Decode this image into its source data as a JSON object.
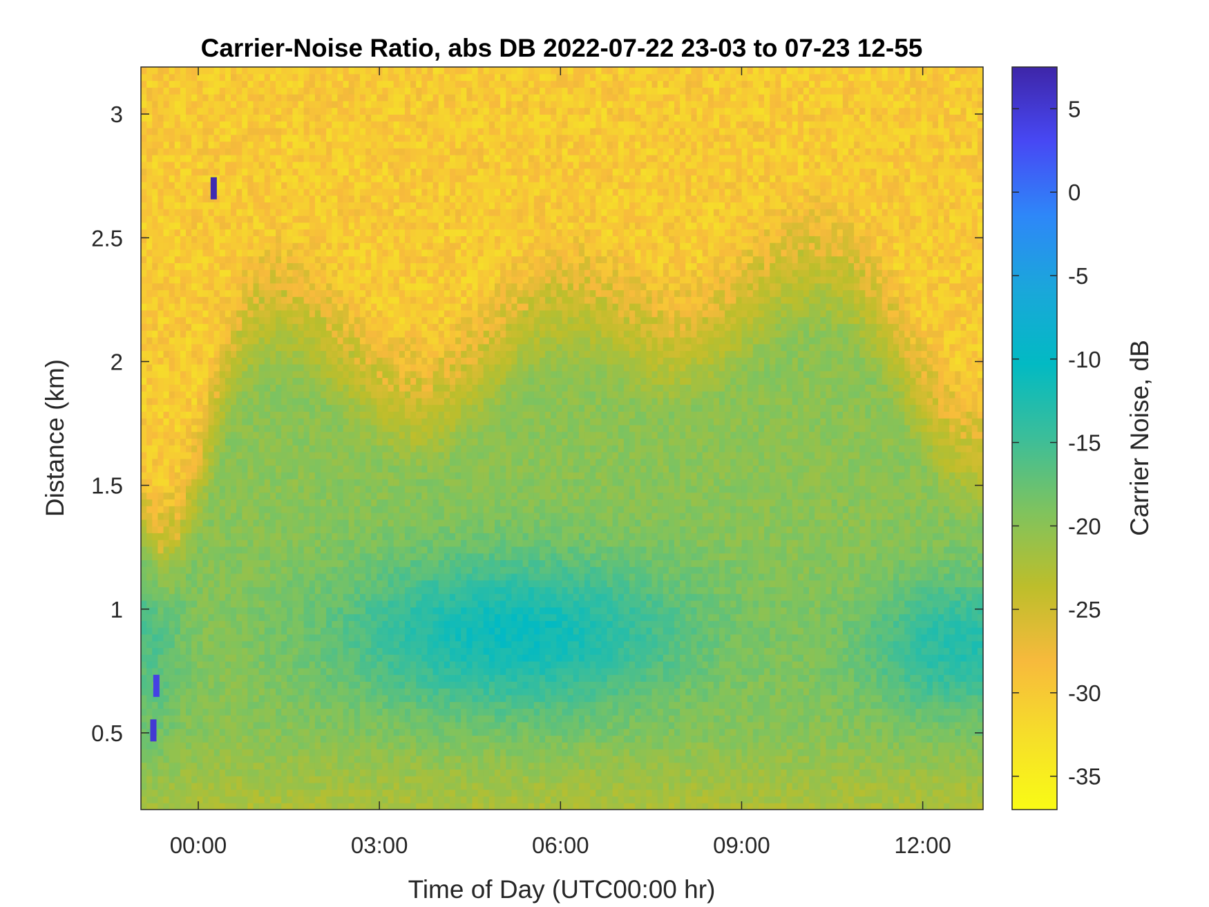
{
  "chart_data": {
    "type": "heatmap",
    "title": "Carrier-Noise Ratio, abs DB 2022-07-22 23-03 to 07-23 12-55",
    "xlabel": "Time of Day (UTC00:00 hr)",
    "ylabel": "Distance (km)",
    "x_unit": "hours from 00:00 UTC on 2022-07-23",
    "xlim": [
      -0.95,
      13.0
    ],
    "ylim": [
      0.19,
      3.19
    ],
    "x_ticks": [
      0,
      3,
      6,
      9,
      12
    ],
    "x_tick_labels": [
      "00:00",
      "03:00",
      "06:00",
      "09:00",
      "12:00"
    ],
    "y_ticks": [
      0.5,
      1,
      1.5,
      2,
      2.5,
      3
    ],
    "y_tick_labels": [
      "0.5",
      "1",
      "1.5",
      "2",
      "2.5",
      "3"
    ],
    "colorbar": {
      "label": "Carrier Noise, dB",
      "range": [
        -37,
        7.5
      ],
      "ticks": [
        5,
        0,
        -5,
        -10,
        -15,
        -20,
        -25,
        -30,
        -35
      ],
      "tick_labels": [
        "5",
        "0",
        "-5",
        "-10",
        "-15",
        "-20",
        "-25",
        "-30",
        "-35"
      ],
      "colormap": [
        "#3e26a8",
        "#4748f4",
        "#2e87f8",
        "#1aa7da",
        "#02bac3",
        "#3cbe99",
        "#80c35d",
        "#bdbe2b",
        "#f7ba3c",
        "#f6de2a",
        "#f9fb15"
      ]
    },
    "features": [
      {
        "description": "upper layer (distance > ~2.2 km) mostly -28 to -32 dB",
        "range_km": [
          2.2,
          3.19
        ],
        "value_db": -30
      },
      {
        "description": "central minimum region around 03:00-08:00, 0.8-1.1 km",
        "time_hr": [
          3.5,
          7.5
        ],
        "range_km": [
          0.75,
          1.1
        ],
        "value_db": -11
      },
      {
        "description": "second minimum region after 11:00, 0.7-1.0 km",
        "time_hr": [
          11.0,
          13.0
        ],
        "range_km": [
          0.7,
          1.0
        ],
        "value_db": -13
      },
      {
        "description": "near surface layer",
        "range_km": [
          0.19,
          0.5
        ],
        "value_db": -21
      },
      {
        "description": "isolated strong returns",
        "points": [
          {
            "time_hr": 0.25,
            "range_km": 2.7,
            "value_db": 7
          },
          {
            "time_hr": -0.7,
            "range_km": 0.69,
            "value_db": 4
          },
          {
            "time_hr": -0.75,
            "range_km": 0.51,
            "value_db": 5
          }
        ]
      }
    ]
  }
}
